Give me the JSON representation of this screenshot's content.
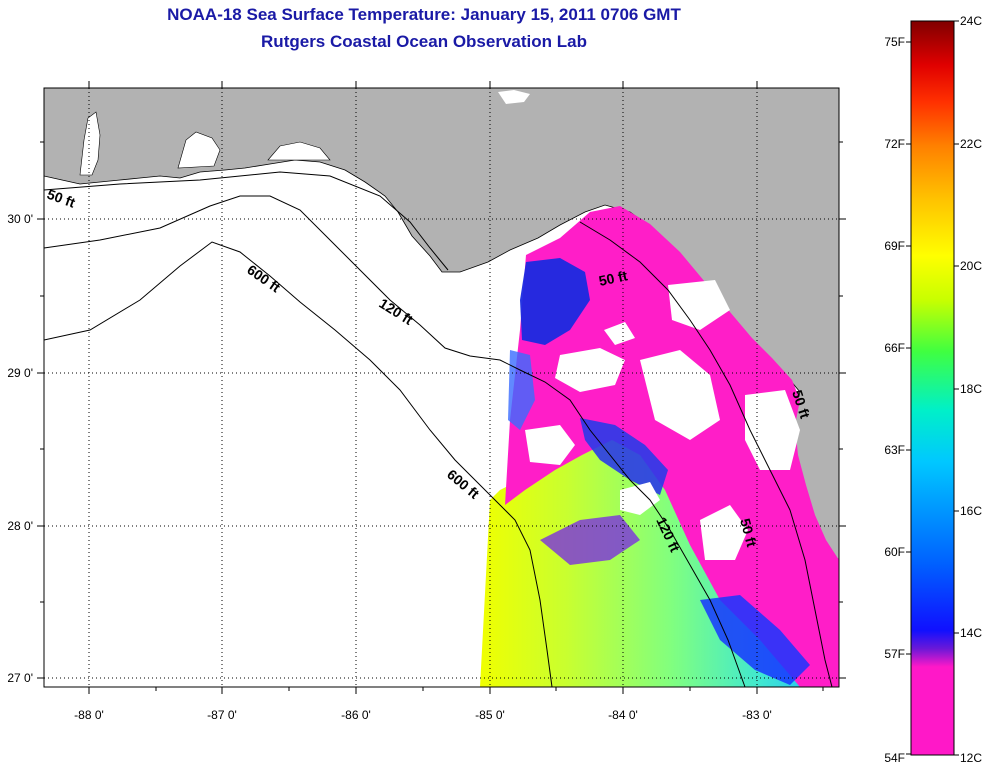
{
  "title": "NOAA-18 Sea Surface Temperature:  January 15, 2011 0706 GMT",
  "subtitle": "Rutgers Coastal Ocean Observation Lab",
  "map": {
    "lon_ticks": [
      "-88 0'",
      "-87 0'",
      "-86 0'",
      "-85 0'",
      "-84 0'",
      "-83 0'"
    ],
    "lat_ticks": [
      "30 0'",
      "29 0'",
      "28 0'",
      "27 0'"
    ],
    "colors": {
      "land": "#b2b2b2",
      "ocean": "#ffffff",
      "cloud": "#ffffff",
      "frame": "#000000",
      "grid": "#000000"
    },
    "contour_labels": [
      "50 ft",
      "50 ft",
      "120 ft",
      "600 ft",
      "600 ft",
      "120 ft",
      "50 ft",
      "50 ft"
    ]
  },
  "colorbar": {
    "fahrenheit_labels": [
      "75F",
      "72F",
      "69F",
      "66F",
      "63F",
      "60F",
      "57F",
      "54F"
    ],
    "celsius_labels": [
      "24C",
      "22C",
      "20C",
      "18C",
      "16C",
      "14C",
      "12C"
    ],
    "range_c": [
      12,
      24
    ],
    "colors": [
      "#ff18c8",
      "#6a18d8",
      "#1010ff",
      "#0060ff",
      "#00c8ff",
      "#00f0c8",
      "#40ff40",
      "#c8ff00",
      "#ffff00",
      "#ffc000",
      "#ff8000",
      "#ff3000",
      "#e00000",
      "#800000"
    ]
  }
}
